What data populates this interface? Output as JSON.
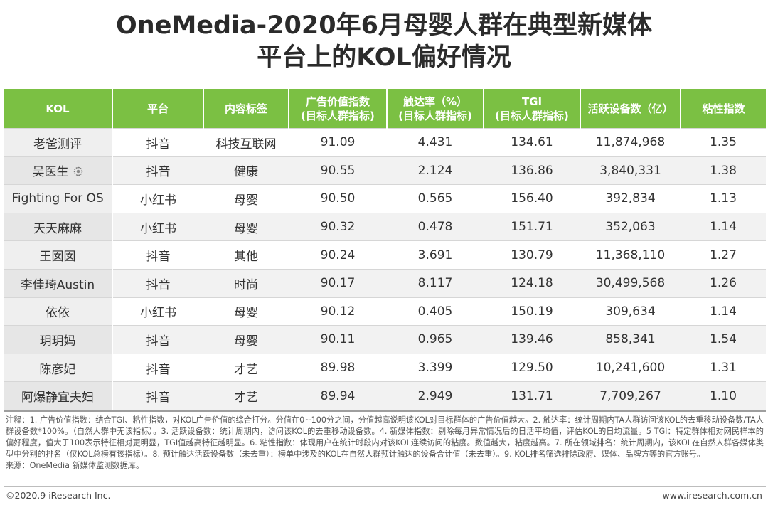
{
  "title": {
    "line1": "OneMedia-2020年6月母婴人群在典型新媒体",
    "line2": "平台上的KOL偏好情况"
  },
  "table": {
    "headers": [
      {
        "l1": "KOL",
        "l2": ""
      },
      {
        "l1": "平台",
        "l2": ""
      },
      {
        "l1": "内容标签",
        "l2": ""
      },
      {
        "l1": "广告价值指数",
        "l2": "(目标人群指标)"
      },
      {
        "l1": "触达率（%）",
        "l2": "(目标人群指标)"
      },
      {
        "l1": "TGI",
        "l2": "(目标人群指标)"
      },
      {
        "l1": "活跃设备数（亿）",
        "l2": ""
      },
      {
        "l1": "粘性指数",
        "l2": ""
      }
    ],
    "rows": [
      {
        "kol": "老爸测评",
        "platform": "抖音",
        "tag": "科技互联网",
        "ad": "91.09",
        "reach": "4.431",
        "tgi": "134.61",
        "devices": "11,874,968",
        "sticky": "1.35"
      },
      {
        "kol": "吴医生",
        "platform": "抖音",
        "tag": "健康",
        "ad": "90.55",
        "reach": "2.124",
        "tgi": "136.86",
        "devices": "3,840,331",
        "sticky": "1.38"
      },
      {
        "kol": "Fighting For OS",
        "platform": "小红书",
        "tag": "母婴",
        "ad": "90.50",
        "reach": "0.565",
        "tgi": "156.40",
        "devices": "392,834",
        "sticky": "1.13"
      },
      {
        "kol": "天天麻麻",
        "platform": "小红书",
        "tag": "母婴",
        "ad": "90.32",
        "reach": "0.478",
        "tgi": "151.71",
        "devices": "352,063",
        "sticky": "1.14"
      },
      {
        "kol": "王囡囡",
        "platform": "抖音",
        "tag": "其他",
        "ad": "90.24",
        "reach": "3.691",
        "tgi": "130.79",
        "devices": "11,368,110",
        "sticky": "1.27"
      },
      {
        "kol": "李佳琦Austin",
        "platform": "抖音",
        "tag": "时尚",
        "ad": "90.17",
        "reach": "8.117",
        "tgi": "124.18",
        "devices": "30,499,568",
        "sticky": "1.26"
      },
      {
        "kol": "依依",
        "platform": "小红书",
        "tag": "母婴",
        "ad": "90.12",
        "reach": "0.405",
        "tgi": "150.19",
        "devices": "309,634",
        "sticky": "1.14"
      },
      {
        "kol": "玥玥妈",
        "platform": "抖音",
        "tag": "母婴",
        "ad": "90.11",
        "reach": "0.965",
        "tgi": "139.46",
        "devices": "858,341",
        "sticky": "1.54"
      },
      {
        "kol": "陈彦妃",
        "platform": "抖音",
        "tag": "才艺",
        "ad": "89.98",
        "reach": "3.399",
        "tgi": "129.50",
        "devices": "10,241,600",
        "sticky": "1.31"
      },
      {
        "kol": "阿爆静宜夫妇",
        "platform": "抖音",
        "tag": "才艺",
        "ad": "89.94",
        "reach": "2.949",
        "tgi": "131.71",
        "devices": "7,709,267",
        "sticky": "1.10"
      }
    ]
  },
  "notes": {
    "text": "注释：1. 广告价值指数：结合TGI、粘性指数，对KOL广告价值的综合打分。分值在0~100分之间，分值越高说明该KOL对目标群体的广告价值越大。2. 触达率：统计周期内TA人群访问该KOL的去重移动设备数/TA人群设备数*100%。（自然人群中无该指标）。3. 活跃设备数：统计周期内，访问该KOL的去重移动设备数。4. 新媒体指数：剔除每月异常情况后的日活平均值，评估KOL的日均流量。5 TGI：特定群体相对网民样本的偏好程度，值大于100表示特征相对更明显，TGI值越高特征越明显。6. 粘性指数：体现用户在统计时段内对该KOL连续访问的粘度。数值越大，粘度越高。7. 所在领域排名：统计周期内，该KOL在自然人群各媒体类型中分别的排名（仅KOL总榜有该指标）。8. 预计触达活跃设备数（未去重）：榜单中涉及的KOL在自然人群预计触达的设备合计值（未去重）。9. KOL排名筛选排除政府、媒体、品牌方等的官方账号。",
    "source": "来源：OneMedia 新媒体监测数据库。"
  },
  "footer": {
    "left": "©2020.9 iResearch Inc.",
    "right": "www.iresearch.com.cn"
  },
  "colors": {
    "header_bg": "#7bc043",
    "row_alt_bg": "#f2f2f2"
  }
}
